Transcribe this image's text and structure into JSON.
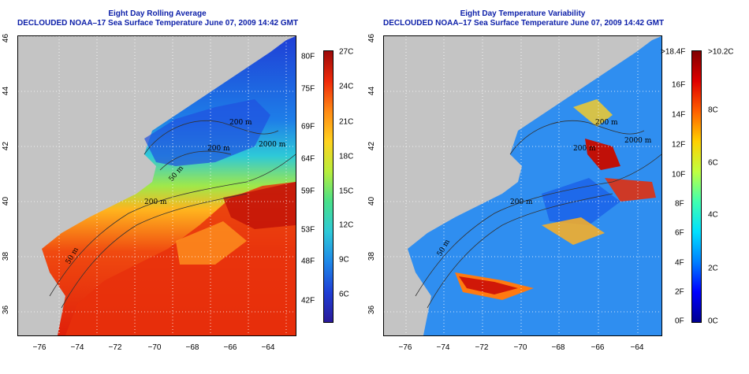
{
  "left_panel": {
    "title_line1": "Eight Day Rolling Average",
    "title_line2": "DECLOUDED NOAA–17 Sea Surface Temperature June 07, 2009 14:42 GMT",
    "x_ticks": [
      "−76",
      "−74",
      "−72",
      "−70",
      "−68",
      "−66",
      "−64"
    ],
    "y_ticks": [
      "46",
      "44",
      "42",
      "40",
      "38",
      "36"
    ],
    "contour_labels": [
      "200 m",
      "200 m",
      "2000 m",
      "200 m",
      "50 m",
      "50 m"
    ],
    "colorbar_left": [
      "80F",
      "75F",
      "69F",
      "64F",
      "59F",
      "53F",
      "48F",
      "42F"
    ],
    "colorbar_right": [
      "27C",
      "24C",
      "21C",
      "18C",
      "15C",
      "12C",
      "9C",
      "6C"
    ]
  },
  "right_panel": {
    "title_line1": "Eight Day Temperature Variability",
    "title_line2": "DECLOUDED NOAA–17 Sea Surface Temperature June 07, 2009 14:42 GMT",
    "x_ticks": [
      "−76",
      "−74",
      "−72",
      "−70",
      "−68",
      "−66",
      "−64"
    ],
    "y_ticks": [
      "46",
      "44",
      "42",
      "40",
      "38",
      "36"
    ],
    "contour_labels": [
      "200 m",
      "200 m",
      "2000 m",
      "200 m",
      "50 m"
    ],
    "colorbar_left": [
      ">18.4F",
      "16F",
      "14F",
      "12F",
      "10F",
      "8F",
      "6F",
      "4F",
      "2F",
      "0F"
    ],
    "colorbar_right": [
      ">10.2C",
      "8C",
      "6C",
      "4C",
      "2C",
      "0C"
    ]
  },
  "colors": {
    "land": "#c4c4c4",
    "title": "#0b1ea8",
    "sst_scale": [
      "#2a1a9a",
      "#1f3fd6",
      "#1e88e8",
      "#2ec9d8",
      "#48e08a",
      "#b8ee3c",
      "#ffd21e",
      "#ff8a14",
      "#f02a0a",
      "#9c0a0a"
    ],
    "var_scale": [
      "#000090",
      "#0000ff",
      "#0080ff",
      "#00e0ff",
      "#40ffb0",
      "#c0ff40",
      "#ffd000",
      "#ff6000",
      "#e00000",
      "#800000"
    ]
  }
}
